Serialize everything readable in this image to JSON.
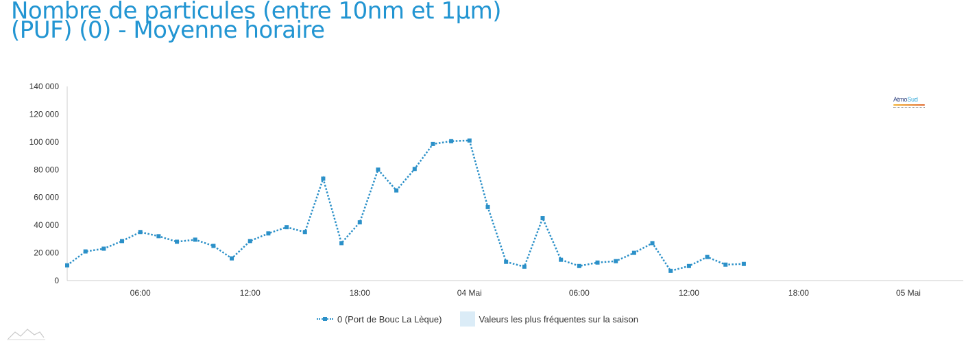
{
  "page": {
    "title_line1": "Nombre de particules (entre 10nm et 1µm)",
    "title_line2": "(PUF) (0) - Moyenne horaire"
  },
  "logo": {
    "part1": "Atmo",
    "part2": "Sud"
  },
  "legend": {
    "series_label": "0 (Port de Bouc La Lèque)",
    "band_label": "Valeurs les plus fréquentes sur la saison"
  },
  "colors": {
    "title": "#2295d2",
    "series": "#2b90c8",
    "band": "#dbecf7",
    "axis": "#cccccc"
  },
  "chart_data": {
    "type": "line",
    "title": "Nombre de particules (entre 10nm et 1µm) (PUF) (0) - Moyenne horaire",
    "xlabel": "",
    "ylabel": "",
    "ylim": [
      0,
      140000
    ],
    "yticks": [
      0,
      20000,
      40000,
      60000,
      80000,
      100000,
      120000,
      140000
    ],
    "ytick_labels": [
      "0",
      "20 000",
      "40 000",
      "60 000",
      "80 000",
      "100 000",
      "120 000",
      "140 000"
    ],
    "xlim": [
      "03 Mai 02:00",
      "05 Mai 03:00"
    ],
    "xtick_labels": [
      "06:00",
      "12:00",
      "18:00",
      "04 Mai",
      "06:00",
      "12:00",
      "18:00",
      "05 Mai"
    ],
    "grid": false,
    "legend_position": "bottom-center",
    "series": [
      {
        "name": "0 (Port de Bouc La Lèque)",
        "style": "dotted line with square markers",
        "x": [
          "03 Mai 02:00",
          "03 Mai 03:00",
          "03 Mai 04:00",
          "03 Mai 05:00",
          "03 Mai 06:00",
          "03 Mai 07:00",
          "03 Mai 08:00",
          "03 Mai 09:00",
          "03 Mai 10:00",
          "03 Mai 11:00",
          "03 Mai 12:00",
          "03 Mai 13:00",
          "03 Mai 14:00",
          "03 Mai 15:00",
          "03 Mai 16:00",
          "03 Mai 17:00",
          "03 Mai 18:00",
          "03 Mai 19:00",
          "03 Mai 20:00",
          "03 Mai 21:00",
          "03 Mai 22:00",
          "03 Mai 23:00",
          "04 Mai 00:00",
          "04 Mai 01:00",
          "04 Mai 02:00",
          "04 Mai 03:00",
          "04 Mai 04:00",
          "04 Mai 05:00",
          "04 Mai 06:00",
          "04 Mai 07:00",
          "04 Mai 08:00",
          "04 Mai 09:00",
          "04 Mai 10:00",
          "04 Mai 11:00",
          "04 Mai 12:00",
          "04 Mai 13:00",
          "04 Mai 14:00",
          "04 Mai 15:00"
        ],
        "values": [
          11000,
          21000,
          23000,
          28500,
          35000,
          32000,
          28000,
          29500,
          25000,
          16000,
          28500,
          34000,
          38500,
          35000,
          73500,
          27000,
          42000,
          80000,
          65000,
          80500,
          98500,
          100500,
          101000,
          53000,
          13500,
          10000,
          45000,
          15000,
          10500,
          13000,
          14000,
          20000,
          27000,
          7000,
          10500,
          17000,
          11500,
          12000
        ]
      }
    ]
  }
}
